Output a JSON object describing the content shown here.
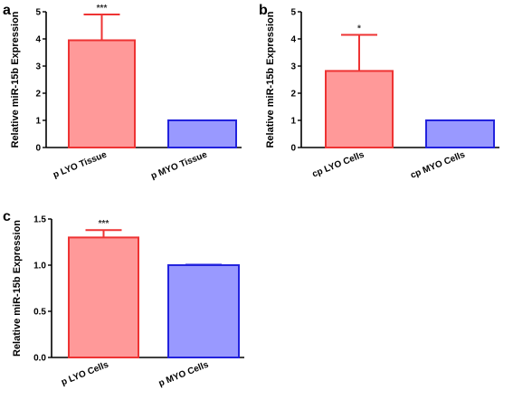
{
  "panels": [
    {
      "letter": "a"
    },
    {
      "letter": "b"
    },
    {
      "letter": "c"
    }
  ],
  "chart_data": [
    {
      "type": "bar",
      "panel": "a",
      "ylabel": "Relative miR-15b Expression",
      "categories": [
        "p LYO Tissue",
        "p MYO Tissue"
      ],
      "values": [
        3.95,
        1.0
      ],
      "errors": [
        0.95,
        0.0
      ],
      "significance": [
        "***",
        ""
      ],
      "colors": [
        {
          "fill": "#ff9999",
          "stroke": "#ee3333"
        },
        {
          "fill": "#9999ff",
          "stroke": "#2222dd"
        }
      ],
      "ylim": [
        0,
        5
      ],
      "yticks": [
        0,
        1,
        2,
        3,
        4,
        5
      ],
      "ytick_labels": [
        "0",
        "1",
        "2",
        "3",
        "4",
        "5"
      ]
    },
    {
      "type": "bar",
      "panel": "b",
      "ylabel": "Relative miR-15b Expression",
      "categories": [
        "cp LYO Cells",
        "cp MYO Cells"
      ],
      "values": [
        2.82,
        1.0
      ],
      "errors": [
        1.33,
        0.0
      ],
      "significance": [
        "*",
        ""
      ],
      "colors": [
        {
          "fill": "#ff9999",
          "stroke": "#ee3333"
        },
        {
          "fill": "#9999ff",
          "stroke": "#2222dd"
        }
      ],
      "ylim": [
        0,
        5
      ],
      "yticks": [
        0,
        1,
        2,
        3,
        4,
        5
      ],
      "ytick_labels": [
        "0",
        "1",
        "2",
        "3",
        "4",
        "5"
      ]
    },
    {
      "type": "bar",
      "panel": "c",
      "ylabel": "Relative miR-15b Expression",
      "categories": [
        "p LYO Cells",
        "p MYO Cells"
      ],
      "values": [
        1.3,
        1.0
      ],
      "errors": [
        0.08,
        0.005
      ],
      "significance": [
        "***",
        ""
      ],
      "colors": [
        {
          "fill": "#ff9999",
          "stroke": "#ee3333"
        },
        {
          "fill": "#9999ff",
          "stroke": "#2222dd"
        }
      ],
      "ylim": [
        0,
        1.5
      ],
      "yticks": [
        0,
        0.5,
        1.0,
        1.5
      ],
      "ytick_labels": [
        "0.0",
        "0.5",
        "1.0",
        "1.5"
      ]
    }
  ]
}
